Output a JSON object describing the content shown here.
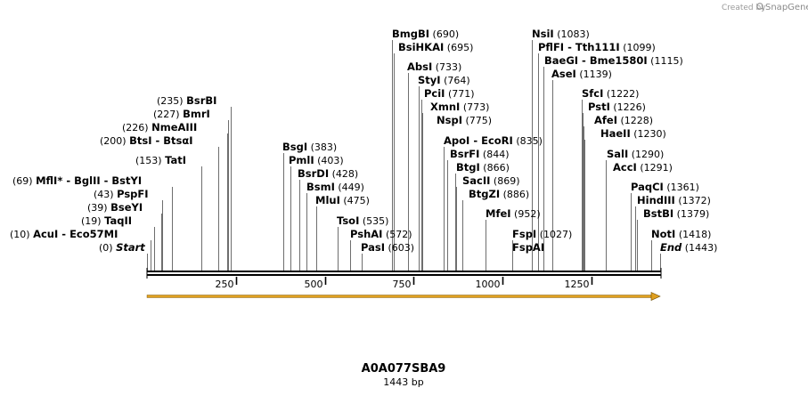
{
  "header": {
    "credit": "Created by",
    "brand": "SnapGene"
  },
  "sequence": {
    "name": "A0A077SBA9",
    "length_label": "1443 bp",
    "length": 1443
  },
  "axis": {
    "ticks": [
      {
        "value": 250,
        "label": "250"
      },
      {
        "value": 500,
        "label": "500"
      },
      {
        "value": 750,
        "label": "750"
      },
      {
        "value": 1000,
        "label": "1000"
      },
      {
        "value": 1250,
        "label": "1250"
      }
    ]
  },
  "feature": {
    "name": "ORF arrow",
    "start": 0,
    "end": 1443,
    "color": "#e0a020"
  },
  "colors": {
    "backbone": "#000000",
    "leader": "#6e6e6e"
  },
  "sites": [
    {
      "key": "start",
      "pos": 0,
      "pos_label": "(0)",
      "name": "Start",
      "italic": true,
      "side": "left"
    },
    {
      "key": "acui",
      "pos": 10,
      "pos_label": "(10)",
      "name": "AcuI",
      "name2": "Eco57MI",
      "side": "left"
    },
    {
      "key": "taqii",
      "pos": 19,
      "pos_label": "(19)",
      "name": "TaqII",
      "side": "left"
    },
    {
      "key": "bseyi",
      "pos": 39,
      "pos_label": "(39)",
      "name": "BseYI",
      "side": "left"
    },
    {
      "key": "pspfi",
      "pos": 43,
      "pos_label": "(43)",
      "name": "PspFI",
      "side": "left"
    },
    {
      "key": "mfli",
      "pos": 69,
      "pos_label": "(69)",
      "name": "MflI",
      "star": "*",
      "name2": "BglII",
      "name3": "BstYI",
      "side": "left"
    },
    {
      "key": "tati",
      "pos": 153,
      "pos_label": "(153)",
      "name": "TatI",
      "side": "left"
    },
    {
      "key": "btsi",
      "pos": 200,
      "pos_label": "(200)",
      "name": "BtsI",
      "name2": "BtsαI",
      "side": "left"
    },
    {
      "key": "nmeaiii",
      "pos": 226,
      "pos_label": "(226)",
      "name": "NmeAIII",
      "side": "left"
    },
    {
      "key": "bmri",
      "pos": 227,
      "pos_label": "(227)",
      "name": "BmrI",
      "side": "left"
    },
    {
      "key": "bsrbi",
      "pos": 235,
      "pos_label": "(235)",
      "name": "BsrBI",
      "side": "left"
    },
    {
      "key": "bsgi",
      "pos": 383,
      "pos_label": "(383)",
      "name": "BsgI",
      "side": "right"
    },
    {
      "key": "pmli",
      "pos": 403,
      "pos_label": "(403)",
      "name": "PmlI",
      "side": "right"
    },
    {
      "key": "bsrdi",
      "pos": 428,
      "pos_label": "(428)",
      "name": "BsrDI",
      "side": "right"
    },
    {
      "key": "bsmi",
      "pos": 449,
      "pos_label": "(449)",
      "name": "BsmI",
      "side": "right"
    },
    {
      "key": "mlui",
      "pos": 475,
      "pos_label": "(475)",
      "name": "MluI",
      "side": "right"
    },
    {
      "key": "tsoi",
      "pos": 535,
      "pos_label": "(535)",
      "name": "TsoI",
      "side": "right"
    },
    {
      "key": "pshai",
      "pos": 572,
      "pos_label": "(572)",
      "name": "PshAI",
      "side": "right"
    },
    {
      "key": "pasi",
      "pos": 603,
      "pos_label": "(603)",
      "name": "PasI",
      "side": "right"
    },
    {
      "key": "bmgbi",
      "pos": 690,
      "pos_label": "(690)",
      "name": "BmgBI",
      "side": "right"
    },
    {
      "key": "bsihkai",
      "pos": 695,
      "pos_label": "(695)",
      "name": "BsiHKAI",
      "side": "right"
    },
    {
      "key": "absi",
      "pos": 733,
      "pos_label": "(733)",
      "name": "AbsI",
      "side": "right"
    },
    {
      "key": "styi",
      "pos": 764,
      "pos_label": "(764)",
      "name": "StyI",
      "side": "right"
    },
    {
      "key": "pcii",
      "pos": 771,
      "pos_label": "(771)",
      "name": "PciI",
      "side": "right"
    },
    {
      "key": "xmni",
      "pos": 773,
      "pos_label": "(773)",
      "name": "XmnI",
      "side": "right"
    },
    {
      "key": "nspi",
      "pos": 775,
      "pos_label": "(775)",
      "name": "NspI",
      "side": "right"
    },
    {
      "key": "apoi",
      "pos": 835,
      "pos_label": "(835)",
      "name": "ApoI",
      "name2": "EcoRI",
      "side": "right"
    },
    {
      "key": "bsrfi",
      "pos": 844,
      "pos_label": "(844)",
      "name": "BsrFI",
      "side": "right"
    },
    {
      "key": "btgi",
      "pos": 866,
      "pos_label": "(866)",
      "name": "BtgI",
      "side": "right"
    },
    {
      "key": "sacii",
      "pos": 869,
      "pos_label": "(869)",
      "name": "SacII",
      "side": "right"
    },
    {
      "key": "btgzi",
      "pos": 886,
      "pos_label": "(886)",
      "name": "BtgZI",
      "side": "right"
    },
    {
      "key": "mfei",
      "pos": 952,
      "pos_label": "(952)",
      "name": "MfeI",
      "side": "right"
    },
    {
      "key": "fspi",
      "pos": 1027,
      "pos_label": "(1027)",
      "name": "FspI",
      "side": "right"
    },
    {
      "key": "fspai",
      "pos": 1027,
      "pos_label": "",
      "name": "FspAI",
      "side": "right"
    },
    {
      "key": "nsii",
      "pos": 1083,
      "pos_label": "(1083)",
      "name": "NsiI",
      "side": "right"
    },
    {
      "key": "pflfi",
      "pos": 1099,
      "pos_label": "(1099)",
      "name": "PflFI",
      "name2": "Tth111I",
      "side": "right"
    },
    {
      "key": "baegi",
      "pos": 1115,
      "pos_label": "(1115)",
      "name": "BaeGI",
      "name2": "Bme1580I",
      "side": "right"
    },
    {
      "key": "asei",
      "pos": 1139,
      "pos_label": "(1139)",
      "name": "AseI",
      "side": "right"
    },
    {
      "key": "sfci",
      "pos": 1222,
      "pos_label": "(1222)",
      "name": "SfcI",
      "side": "right"
    },
    {
      "key": "psti",
      "pos": 1226,
      "pos_label": "(1226)",
      "name": "PstI",
      "side": "right"
    },
    {
      "key": "afei",
      "pos": 1228,
      "pos_label": "(1228)",
      "name": "AfeI",
      "side": "right"
    },
    {
      "key": "haeii",
      "pos": 1230,
      "pos_label": "(1230)",
      "name": "HaeII",
      "side": "right"
    },
    {
      "key": "sali",
      "pos": 1290,
      "pos_label": "(1290)",
      "name": "SalI",
      "side": "right"
    },
    {
      "key": "acci",
      "pos": 1291,
      "pos_label": "(1291)",
      "name": "AccI",
      "side": "right"
    },
    {
      "key": "paqci",
      "pos": 1361,
      "pos_label": "(1361)",
      "name": "PaqCI",
      "side": "right"
    },
    {
      "key": "hindiii",
      "pos": 1372,
      "pos_label": "(1372)",
      "name": "HindIII",
      "side": "right"
    },
    {
      "key": "bstbi",
      "pos": 1379,
      "pos_label": "(1379)",
      "name": "BstBI",
      "side": "right"
    },
    {
      "key": "noti",
      "pos": 1418,
      "pos_label": "(1418)",
      "name": "NotI",
      "side": "right"
    },
    {
      "key": "end",
      "pos": 1443,
      "pos_label": "(1443)",
      "name": "End",
      "italic": true,
      "side": "right"
    }
  ]
}
